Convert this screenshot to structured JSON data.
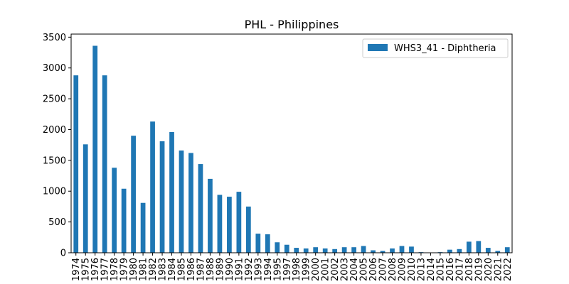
{
  "chart_data": {
    "type": "bar",
    "title": "PHL - Philippines",
    "xlabel": "",
    "ylabel": "",
    "ylim": [
      0,
      3550
    ],
    "yticks": [
      0,
      500,
      1000,
      1500,
      2000,
      2500,
      3000,
      3500
    ],
    "legend_position": "top-right",
    "grid": false,
    "categories": [
      "1974",
      "1975",
      "1976",
      "1977",
      "1978",
      "1979",
      "1980",
      "1981",
      "1982",
      "1983",
      "1984",
      "1985",
      "1986",
      "1987",
      "1988",
      "1989",
      "1990",
      "1991",
      "1992",
      "1993",
      "1994",
      "1995",
      "1997",
      "1998",
      "1999",
      "2000",
      "2001",
      "2002",
      "2003",
      "2004",
      "2005",
      "2006",
      "2007",
      "2008",
      "2009",
      "2010",
      "2013",
      "2014",
      "2015",
      "2016",
      "2017",
      "2018",
      "2019",
      "2020",
      "2021",
      "2022"
    ],
    "series": [
      {
        "name": "WHS3_41 - Diphtheria",
        "color": "#1f77b4",
        "values": [
          2880,
          1760,
          3360,
          2880,
          1380,
          1040,
          1900,
          810,
          2130,
          1810,
          1960,
          1660,
          1620,
          1440,
          1200,
          940,
          910,
          990,
          750,
          310,
          300,
          170,
          130,
          80,
          70,
          90,
          70,
          60,
          90,
          90,
          110,
          40,
          30,
          70,
          110,
          100,
          10,
          5,
          10,
          50,
          60,
          180,
          190,
          80,
          30,
          90
        ]
      }
    ]
  }
}
